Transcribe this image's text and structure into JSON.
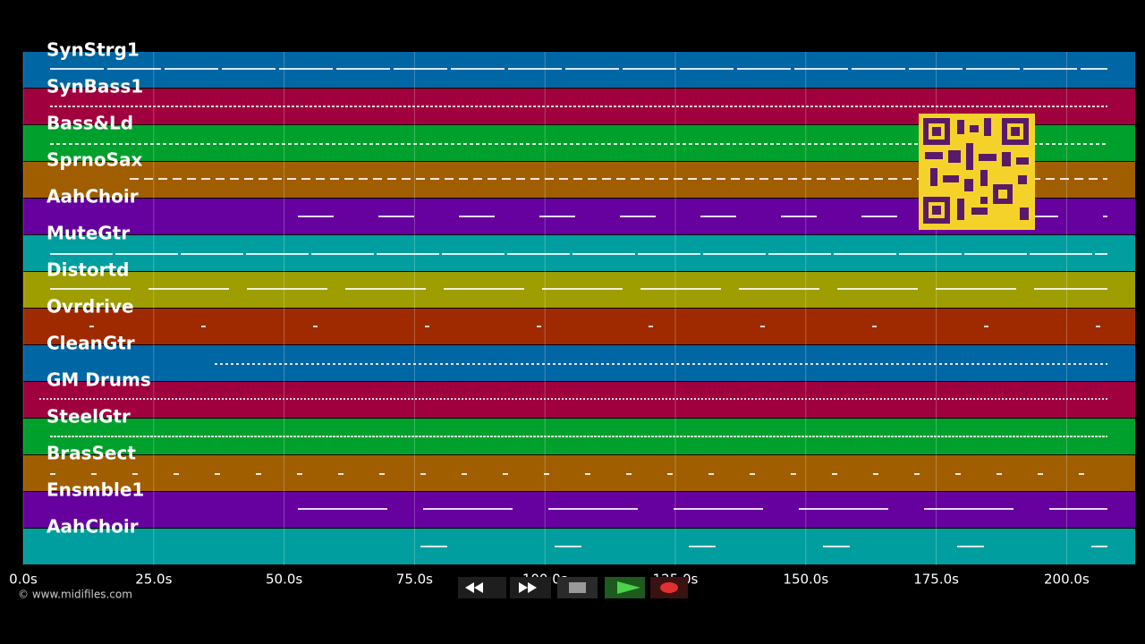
{
  "tracks": [
    {
      "name": "SynStrg1",
      "color": "#0066a4"
    },
    {
      "name": "SynBass1",
      "color": "#a0003e"
    },
    {
      "name": "Bass&Ld",
      "color": "#00a02c"
    },
    {
      "name": "SprnoSax",
      "color": "#a05e00"
    },
    {
      "name": "AahChoir",
      "color": "#66009e"
    },
    {
      "name": "MuteGtr",
      "color": "#009e9e"
    },
    {
      "name": "Distortd",
      "color": "#9e9e00"
    },
    {
      "name": "Ovrdrive",
      "color": "#a02a00"
    },
    {
      "name": "CleanGtr",
      "color": "#0066a4"
    },
    {
      "name": "GM Drums",
      "color": "#a0003e"
    },
    {
      "name": "SteelGtr",
      "color": "#00a02c"
    },
    {
      "name": "BrasSect",
      "color": "#a05e00"
    },
    {
      "name": "Ensmble1",
      "color": "#66009e"
    },
    {
      "name": "AahChoir",
      "color": "#009e9e"
    }
  ],
  "time_axis": {
    "ticks": [
      "0.0s",
      "25.0s",
      "50.0s",
      "75.0s",
      "100.0s",
      "125.0s",
      "150.0s",
      "175.0s",
      "200.0s"
    ]
  },
  "footer": {
    "copyright": "© www.midifiles.com"
  }
}
